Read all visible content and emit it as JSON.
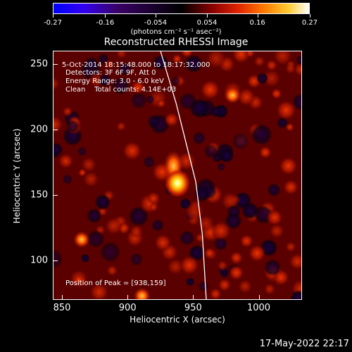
{
  "colorbar": {
    "ticks": [
      "-0.27",
      "-0.16",
      "-0.054",
      "0.054",
      "0.16",
      "0.27"
    ],
    "tick_values": [
      -0.27,
      -0.16,
      -0.054,
      0.054,
      0.16,
      0.27
    ],
    "units_label": "(photons cm⁻² s⁻¹ asec⁻²)"
  },
  "title": "Reconstructed RHESSI Image",
  "info": {
    "time_range": "5-Oct-2014 18:15:48.000 to 18:17:32.000",
    "detectors": "Detectors: 3F 6F 9F, Att 0",
    "energy": "Energy Range: 3.0 - 6.0 keV",
    "clean": "Clean    Total counts: 4.14E+03",
    "peak": "Position of Peak = [938,159]"
  },
  "axes": {
    "xlabel": "Heliocentric X (arcsec)",
    "ylabel": "Heliocentric Y (arcsec)",
    "xticks": [
      "850",
      "900",
      "950",
      "1000"
    ],
    "yticks": [
      "100",
      "150",
      "200",
      "250"
    ],
    "xrange": [
      843,
      1033
    ],
    "yrange": [
      70,
      260
    ]
  },
  "image": {
    "peak_position": [
      938,
      159
    ],
    "secondary_sources": [
      [
        935,
        172
      ],
      [
        865,
        116
      ],
      [
        980,
        226
      ],
      [
        911,
        73
      ],
      [
        908,
        232
      ]
    ],
    "limb_curve": [
      [
        925,
        260
      ],
      [
        937,
        220
      ],
      [
        947,
        180
      ],
      [
        952,
        160
      ],
      [
        957,
        120
      ],
      [
        960,
        70
      ]
    ]
  },
  "timestamp": "17-May-2022 22:17"
}
